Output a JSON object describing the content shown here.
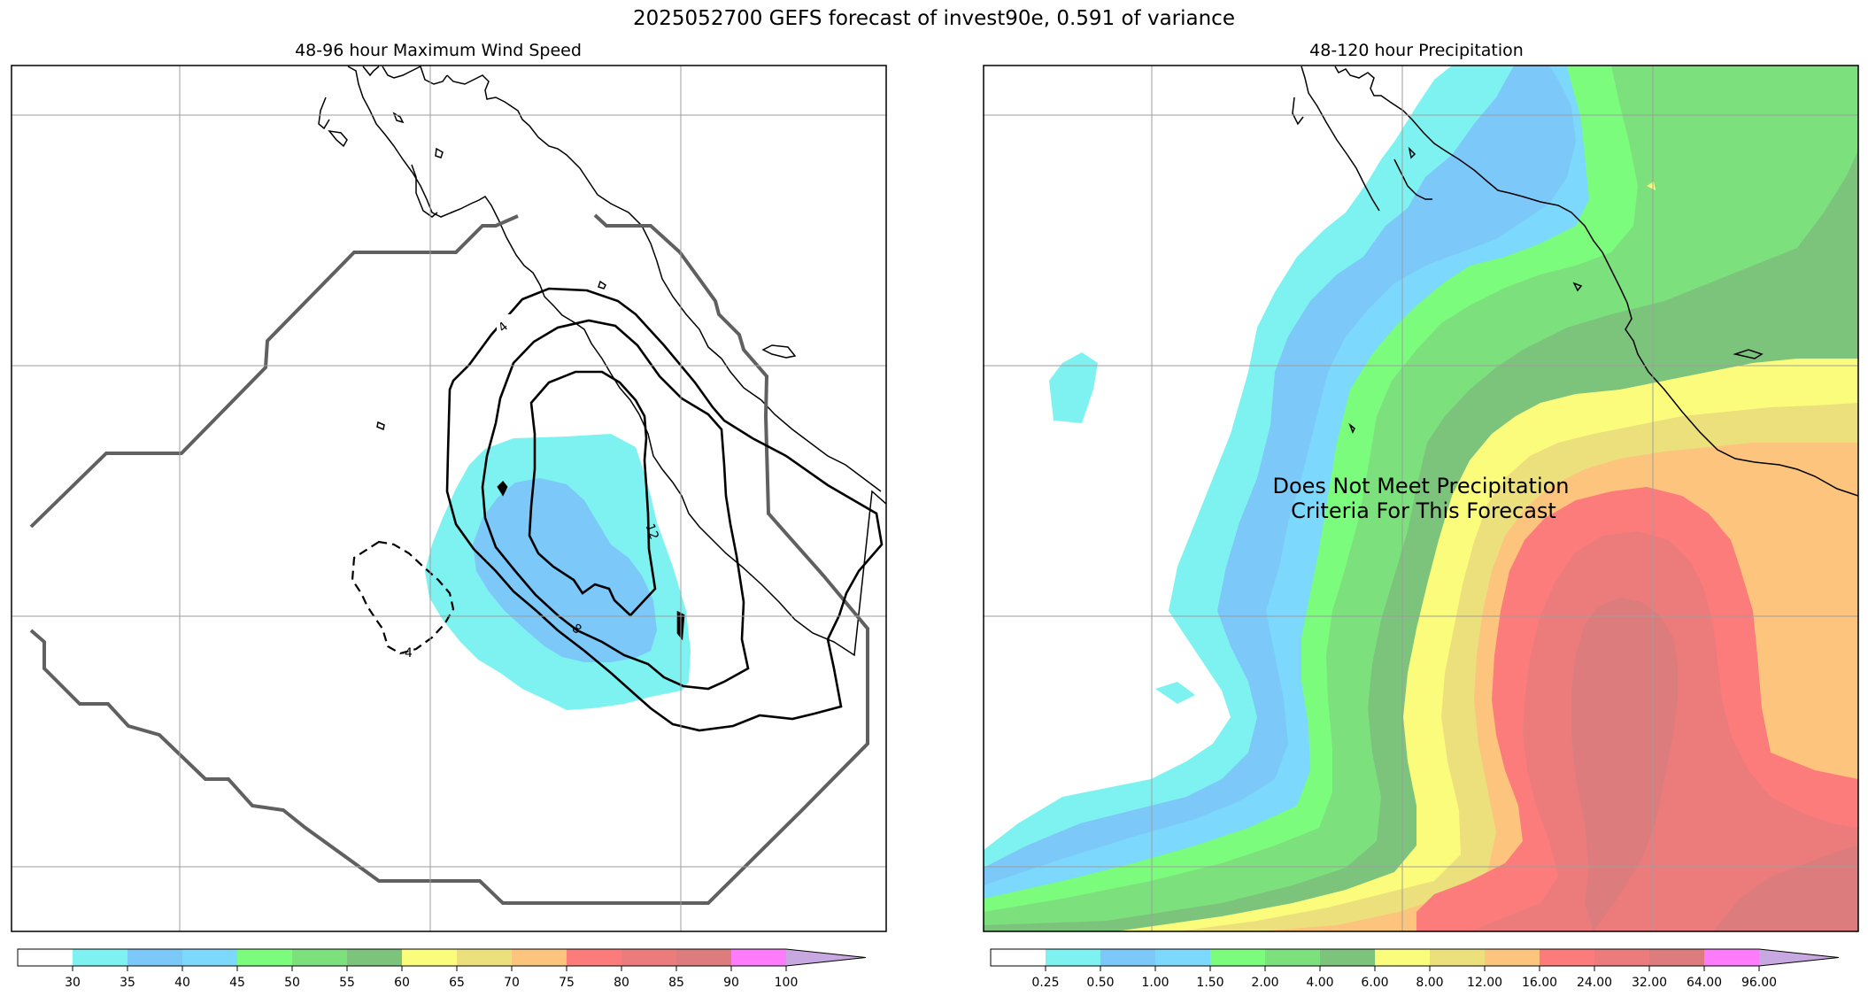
{
  "title": "2025052700 GEFS forecast of invest90e, 0.591 of variance",
  "panels": [
    {
      "title": "48-96 hour Maximum Wind Speed",
      "contour_labels": [
        "4",
        "8",
        "12",
        "-4"
      ]
    },
    {
      "title": "48-120 hour Precipitation",
      "message_line1": "Does Not Meet Precipitation",
      "message_line2": "Criteria For This Forecast"
    }
  ],
  "chart_data": [
    {
      "type": "heatmap",
      "title": "48-96 hour Maximum Wind Speed",
      "colorbar": {
        "levels": [
          30,
          35,
          40,
          45,
          50,
          55,
          60,
          65,
          70,
          75,
          80,
          85,
          90,
          100
        ],
        "tick_labels": [
          "30",
          "35",
          "40",
          "45",
          "50",
          "55",
          "60",
          "65",
          "70",
          "75",
          "80",
          "85",
          "90",
          "100"
        ],
        "colors": [
          "#ffffff",
          "#7ef2f0",
          "#7cc8f8",
          "#7cd8fc",
          "#7cfc7c",
          "#7ce07c",
          "#7cc47c",
          "#fcfc7c",
          "#ece07c",
          "#fcc47c",
          "#fc7c7c",
          "#ec7c7c",
          "#dc7c7c",
          "#fc7cfc",
          "#c8a8e0"
        ],
        "extend": "max"
      },
      "contours": [
        {
          "level": 4,
          "style": "solid"
        },
        {
          "level": 8,
          "style": "solid"
        },
        {
          "level": 12,
          "style": "solid"
        },
        {
          "level": -4,
          "style": "dashed"
        }
      ],
      "filled_region": {
        "level": "30-40",
        "color": "#7ef2f0"
      },
      "grid": true
    },
    {
      "type": "heatmap",
      "title": "48-120 hour Precipitation",
      "colorbar": {
        "levels": [
          0.25,
          0.5,
          1.0,
          1.5,
          2.0,
          4.0,
          6.0,
          8.0,
          12.0,
          16.0,
          24.0,
          32.0,
          64.0,
          96.0
        ],
        "tick_labels": [
          "0.25",
          "0.50",
          "1.00",
          "1.50",
          "2.00",
          "4.00",
          "6.00",
          "8.00",
          "12.00",
          "16.00",
          "24.00",
          "32.00",
          "64.00",
          "96.00"
        ],
        "colors": [
          "#ffffff",
          "#7ef2f0",
          "#7cc8f8",
          "#7cd8fc",
          "#7cfc7c",
          "#7ce07c",
          "#7cc47c",
          "#fcfc7c",
          "#ece07c",
          "#fcc47c",
          "#fc7c7c",
          "#ec7c7c",
          "#dc7c7c",
          "#fc7cfc",
          "#c8a8e0"
        ],
        "extend": "max"
      },
      "grid": true
    }
  ]
}
